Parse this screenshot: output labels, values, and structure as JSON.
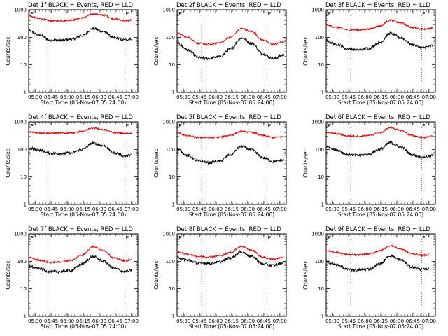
{
  "figure": {
    "background": "#ffffff",
    "event_color": "#000000",
    "lld_color": "#e00000",
    "panels": [
      {
        "title": "Det 1f BLACK = Events, RED = LLD",
        "marker_labels": [
          "E",
          "E"
        ]
      },
      {
        "title": "Det 2f BLACK = Events, RED = LLD",
        "marker_labels": [
          "E",
          "E"
        ]
      },
      {
        "title": "Det 3f BLACK = Events, RED = LLD",
        "marker_labels": [
          "E",
          "E"
        ]
      },
      {
        "title": "Det 4f BLACK = Events, RED = LLD",
        "marker_labels": [
          "E",
          "E"
        ]
      },
      {
        "title": "Det 5f BLACK = Events, RED = LLD",
        "marker_labels": [
          "E",
          "E"
        ]
      },
      {
        "title": "Det 6f BLACK = Events, RED = LLD",
        "marker_labels": [
          "E",
          "E"
        ]
      },
      {
        "title": "Det 7f BLACK = Events, RED = LLD",
        "marker_labels": [
          "E",
          "E"
        ]
      },
      {
        "title": "Det 8f BLACK = Events, RED = LLD",
        "marker_labels": [
          "E",
          "E"
        ]
      },
      {
        "title": "Det 9f BLACK = Events, RED = LLD",
        "marker_labels": [
          "E",
          "E"
        ]
      }
    ]
  },
  "chart_data": {
    "type": "line",
    "xlabel": "Start Time (05-Nov-07 05:24:00)",
    "ylabel": "Counts/sec",
    "yscale": "log",
    "ylim": [
      1,
      1000
    ],
    "yticks": [
      1,
      10,
      100,
      1000
    ],
    "ytick_labels": [
      "1",
      "10",
      "100",
      "1000"
    ],
    "xlim_minutes": [
      0,
      102
    ],
    "xticks_minutes": [
      6,
      21,
      36,
      51,
      66,
      81,
      96
    ],
    "xtick_labels": [
      "05:30",
      "05:45",
      "06:00",
      "06:15",
      "06:30",
      "06:45",
      "07:00"
    ],
    "dotted_lines_minutes": [
      [
        20,
        90
      ],
      [
        23,
        84
      ],
      [
        23,
        89
      ],
      [
        20,
        90
      ],
      [
        23,
        84
      ],
      [
        23,
        89
      ],
      [
        20,
        90
      ],
      [
        23,
        84
      ],
      [
        23,
        89
      ]
    ],
    "marker_minutes": [
      [
        1,
        90
      ],
      [
        1,
        84
      ],
      [
        1,
        89
      ],
      [
        1,
        90
      ],
      [
        1,
        84
      ],
      [
        1,
        89
      ],
      [
        1,
        90
      ],
      [
        1,
        84
      ],
      [
        1,
        89
      ]
    ],
    "x_minutes": [
      0,
      10,
      20,
      30,
      40,
      50,
      60,
      70,
      80,
      90,
      100
    ],
    "panels": [
      {
        "name": "Det 1f",
        "series": [
          {
            "name": "Events",
            "x_range": [
              0,
              96
            ],
            "values": [
              170,
              120,
              80,
              78,
              85,
              115,
              210,
              160,
              95,
              80,
              95
            ]
          },
          {
            "name": "LLD",
            "x_range": [
              0,
              96
            ],
            "values": [
              600,
              480,
              400,
              400,
              420,
              510,
              700,
              640,
              470,
              400,
              440
            ]
          }
        ]
      },
      {
        "name": "Det 2f",
        "series": [
          {
            "name": "Events",
            "x_range": [
              0,
              100
            ],
            "values": [
              60,
              35,
              18,
              17,
              20,
              38,
              95,
              60,
              25,
              17,
              23
            ]
          },
          {
            "name": "LLD",
            "x_range": [
              0,
              100
            ],
            "values": [
              140,
              100,
              60,
              55,
              65,
              100,
              210,
              160,
              80,
              55,
              70
            ]
          }
        ]
      },
      {
        "name": "Det 3f",
        "series": [
          {
            "name": "Events",
            "x_range": [
              0,
              100
            ],
            "values": [
              75,
              55,
              38,
              35,
              40,
              65,
              140,
              95,
              55,
              42,
              50
            ]
          },
          {
            "name": "LLD",
            "x_range": [
              0,
              100
            ],
            "values": [
              280,
              230,
              190,
              185,
              200,
              260,
              420,
              330,
              230,
              200,
              210
            ]
          }
        ]
      },
      {
        "name": "Det 4f",
        "series": [
          {
            "name": "Events",
            "x_range": [
              0,
              96
            ],
            "values": [
              110,
              95,
              72,
              70,
              75,
              100,
              170,
              135,
              75,
              58,
              65
            ]
          },
          {
            "name": "LLD",
            "x_range": [
              0,
              96
            ],
            "values": [
              430,
              400,
              390,
              390,
              400,
              450,
              600,
              520,
              410,
              380,
              400
            ]
          }
        ]
      },
      {
        "name": "Det 5f",
        "series": [
          {
            "name": "Events",
            "x_range": [
              0,
              100
            ],
            "values": [
              100,
              60,
              38,
              33,
              38,
              65,
              130,
              95,
              50,
              36,
              40
            ]
          },
          {
            "name": "LLD",
            "x_range": [
              0,
              100
            ],
            "values": [
              400,
              310,
              270,
              265,
              280,
              330,
              450,
              410,
              320,
              270,
              290
            ]
          }
        ]
      },
      {
        "name": "Det 6f",
        "series": [
          {
            "name": "Events",
            "x_range": [
              0,
              100
            ],
            "values": [
              130,
              95,
              65,
              60,
              68,
              100,
              175,
              120,
              65,
              52,
              60
            ]
          },
          {
            "name": "LLD",
            "x_range": [
              0,
              100
            ],
            "values": [
              420,
              370,
              310,
              300,
              320,
              400,
              620,
              480,
              320,
              270,
              300
            ]
          }
        ]
      },
      {
        "name": "Det 7f",
        "series": [
          {
            "name": "Events",
            "x_range": [
              0,
              96
            ],
            "values": [
              65,
              55,
              42,
              42,
              48,
              80,
              150,
              100,
              55,
              42,
              50
            ]
          },
          {
            "name": "LLD",
            "x_range": [
              0,
              96
            ],
            "values": [
              140,
              110,
              90,
              95,
              110,
              170,
              340,
              250,
              130,
              105,
              125
            ]
          }
        ]
      },
      {
        "name": "Det 8f",
        "series": [
          {
            "name": "Events",
            "x_range": [
              0,
              100
            ],
            "values": [
              140,
              110,
              85,
              85,
              95,
              135,
              220,
              150,
              80,
              70,
              90
            ]
          },
          {
            "name": "LLD",
            "x_range": [
              0,
              100
            ],
            "values": [
              220,
              180,
              150,
              145,
              160,
              210,
              350,
              250,
              140,
              120,
              140
            ]
          }
        ]
      },
      {
        "name": "Det 9f",
        "series": [
          {
            "name": "Events",
            "x_range": [
              0,
              96
            ],
            "values": [
              95,
              75,
              50,
              48,
              52,
              80,
              160,
              110,
              62,
              50,
              55
            ]
          },
          {
            "name": "LLD",
            "x_range": [
              0,
              96
            ],
            "values": [
              250,
              210,
              175,
              170,
              185,
              240,
              370,
              280,
              190,
              165,
              185
            ]
          }
        ]
      }
    ]
  }
}
